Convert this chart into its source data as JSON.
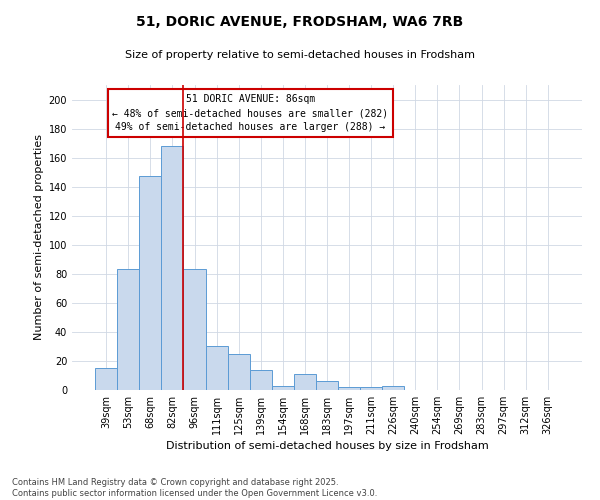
{
  "title1": "51, DORIC AVENUE, FRODSHAM, WA6 7RB",
  "title2": "Size of property relative to semi-detached houses in Frodsham",
  "xlabel": "Distribution of semi-detached houses by size in Frodsham",
  "ylabel": "Number of semi-detached properties",
  "categories": [
    "39sqm",
    "53sqm",
    "68sqm",
    "82sqm",
    "96sqm",
    "111sqm",
    "125sqm",
    "139sqm",
    "154sqm",
    "168sqm",
    "183sqm",
    "197sqm",
    "211sqm",
    "226sqm",
    "240sqm",
    "254sqm",
    "269sqm",
    "283sqm",
    "297sqm",
    "312sqm",
    "326sqm"
  ],
  "values": [
    15,
    83,
    147,
    168,
    83,
    30,
    25,
    14,
    3,
    11,
    6,
    2,
    2,
    3,
    0,
    0,
    0,
    0,
    0,
    0,
    0
  ],
  "bar_color": "#c9d9ed",
  "bar_edge_color": "#5b9bd5",
  "red_line_color": "#cc0000",
  "annotation_text1": "51 DORIC AVENUE: 86sqm",
  "annotation_text2": "← 48% of semi-detached houses are smaller (282)",
  "annotation_text3": "49% of semi-detached houses are larger (288) →",
  "annotation_box_color": "#ffffff",
  "annotation_edge_color": "#cc0000",
  "grid_color": "#d0d8e4",
  "background_color": "#ffffff",
  "footer_text": "Contains HM Land Registry data © Crown copyright and database right 2025.\nContains public sector information licensed under the Open Government Licence v3.0.",
  "ylim": [
    0,
    210
  ],
  "yticks": [
    0,
    20,
    40,
    60,
    80,
    100,
    120,
    140,
    160,
    180,
    200
  ],
  "red_line_bar_index": 3,
  "title1_fontsize": 10,
  "title2_fontsize": 8,
  "ylabel_fontsize": 8,
  "xlabel_fontsize": 8,
  "tick_fontsize": 7,
  "annotation_fontsize": 7,
  "footer_fontsize": 6
}
